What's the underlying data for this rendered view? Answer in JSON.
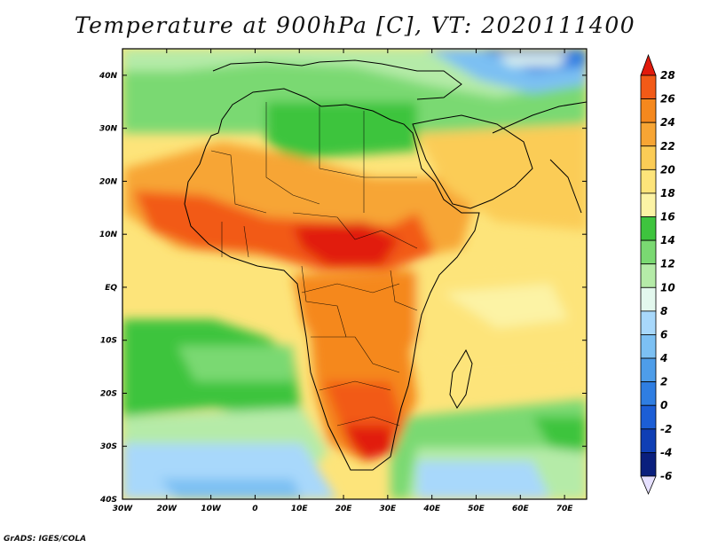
{
  "title": "Temperature at 900hPa [C], VT: 2020111400",
  "credit": "GrADS: IGES/COLA",
  "lat_labels": [
    "40N",
    "30N",
    "20N",
    "10N",
    "EQ",
    "10S",
    "20S",
    "30S",
    "40S"
  ],
  "lon_labels": [
    "30W",
    "20W",
    "10W",
    "0",
    "10E",
    "20E",
    "30E",
    "40E",
    "50E",
    "60E",
    "70E"
  ],
  "colorbar": {
    "labels": [
      "28",
      "26",
      "24",
      "22",
      "20",
      "18",
      "16",
      "14",
      "12",
      "10",
      "8",
      "6",
      "4",
      "2",
      "0",
      "-2",
      "-4",
      "-6"
    ],
    "colors": [
      "#e11a0c",
      "#f25a17",
      "#f5881d",
      "#f7a534",
      "#fbcc56",
      "#fde47a",
      "#fcf3a5",
      "#3ec43e",
      "#7ad972",
      "#b5eba8",
      "#e3f8ee",
      "#a8d8fb",
      "#7cc0f3",
      "#4e9de9",
      "#2f7ee2",
      "#1c5ed6",
      "#0f3fb5",
      "#0a1f7d",
      "#10126a"
    ],
    "unit": "C"
  },
  "extent": {
    "lon_min": -30,
    "lon_max": 75,
    "lat_min": -40,
    "lat_max": 45
  }
}
